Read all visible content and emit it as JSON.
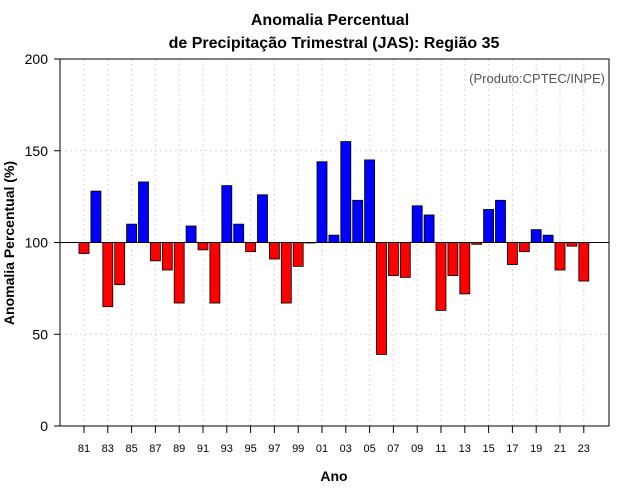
{
  "chart_data": {
    "type": "bar",
    "title": "Anomalia Percentual",
    "subtitle": "de Precipitação Trimestral (JAS): Região 35",
    "xlabel": "Ano",
    "ylabel": "Anomalia Percentual (%)",
    "credit": "(Produto:CPTEC/INPE)",
    "ylim": [
      0,
      200
    ],
    "yticks": [
      0,
      50,
      100,
      150,
      200
    ],
    "baseline": 100,
    "grid": true,
    "colors": {
      "above": "#0000ff",
      "below": "#ff0000",
      "outline": "#000000",
      "grid": "#d8d8d8"
    },
    "categories": [
      "81",
      "82",
      "83",
      "84",
      "85",
      "86",
      "87",
      "88",
      "89",
      "90",
      "91",
      "92",
      "93",
      "94",
      "95",
      "96",
      "97",
      "98",
      "99",
      "00",
      "01",
      "02",
      "03",
      "04",
      "05",
      "06",
      "07",
      "08",
      "09",
      "10",
      "11",
      "12",
      "13",
      "14",
      "15",
      "16",
      "17",
      "18",
      "19",
      "20",
      "21",
      "22",
      "23"
    ],
    "xtick_labels": [
      "81",
      "83",
      "85",
      "87",
      "89",
      "91",
      "93",
      "95",
      "97",
      "99",
      "01",
      "03",
      "05",
      "07",
      "09",
      "11",
      "13",
      "15",
      "17",
      "19",
      "21",
      "23"
    ],
    "values": [
      94,
      128,
      65,
      77,
      110,
      133,
      90,
      85,
      67,
      109,
      96,
      67,
      131,
      110,
      95,
      126,
      91,
      67,
      87,
      100,
      144,
      104,
      155,
      123,
      145,
      39,
      82,
      81,
      120,
      115,
      63,
      82,
      72,
      99,
      118,
      123,
      88,
      95,
      107,
      104,
      85,
      98,
      79
    ]
  }
}
